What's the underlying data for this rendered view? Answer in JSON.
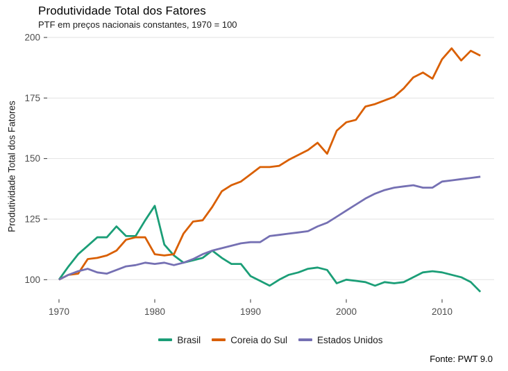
{
  "chart_data": {
    "type": "line",
    "title": "Produtividade Total dos Fatores",
    "subtitle": "PTF em preços nacionais constantes, 1970 = 100",
    "ylabel": "Produtividade Total dos Fatores",
    "xlabel": "",
    "caption": "Fonte: PWT 9.0",
    "legend_position": "bottom",
    "grid": "horizontal-only",
    "xlim": [
      1970,
      2014
    ],
    "ylim": [
      95,
      200
    ],
    "x_ticks": [
      1970,
      1980,
      1990,
      2000,
      2010
    ],
    "y_ticks": [
      100,
      125,
      150,
      175,
      200
    ],
    "x": [
      1970,
      1971,
      1972,
      1973,
      1974,
      1975,
      1976,
      1977,
      1978,
      1979,
      1980,
      1981,
      1982,
      1983,
      1984,
      1985,
      1986,
      1987,
      1988,
      1989,
      1990,
      1991,
      1992,
      1993,
      1994,
      1995,
      1996,
      1997,
      1998,
      1999,
      2000,
      2001,
      2002,
      2003,
      2004,
      2005,
      2006,
      2007,
      2008,
      2009,
      2010,
      2011,
      2012,
      2013,
      2014
    ],
    "series": [
      {
        "name": "Brasil",
        "color": "#1B9E77",
        "values": [
          100,
          105.5,
          110.5,
          114,
          117.5,
          117.5,
          122,
          118,
          118,
          124.5,
          130.5,
          114.5,
          110,
          107,
          108,
          109,
          112,
          109,
          106.5,
          106.5,
          101.5,
          99.5,
          97.5,
          100,
          102,
          103,
          104.5,
          105,
          104,
          98.5,
          100,
          99.5,
          99,
          97.5,
          99,
          98.5,
          99,
          101,
          103,
          103.5,
          103,
          102,
          101,
          99,
          95
        ]
      },
      {
        "name": "Coreia do Sul",
        "color": "#D95F02",
        "values": [
          100,
          102,
          102.5,
          108.5,
          109,
          110,
          112,
          116.5,
          117.5,
          117.5,
          110.5,
          110,
          110.5,
          119,
          124,
          124.5,
          130,
          136.5,
          139,
          140.5,
          143.5,
          146.5,
          146.5,
          147,
          149.5,
          151.5,
          153.5,
          156.5,
          152,
          161.5,
          165,
          166,
          171.5,
          172.5,
          174,
          175.5,
          179,
          183.5,
          185.5,
          183,
          191,
          195.5,
          190.5,
          194.5,
          192.5
        ]
      },
      {
        "name": "Estados Unidos",
        "color": "#7570B3",
        "values": [
          100,
          102,
          103.5,
          104.5,
          103,
          102.5,
          104,
          105.5,
          106,
          107,
          106.5,
          107,
          106,
          107,
          108.5,
          110.5,
          112,
          113,
          114,
          115,
          115.5,
          115.5,
          118,
          118.5,
          119,
          119.5,
          120,
          122,
          123.5,
          126,
          128.5,
          131,
          133.5,
          135.5,
          137,
          138,
          138.5,
          139,
          138,
          138,
          140.5,
          141,
          141.5,
          142,
          142.5
        ]
      }
    ]
  }
}
